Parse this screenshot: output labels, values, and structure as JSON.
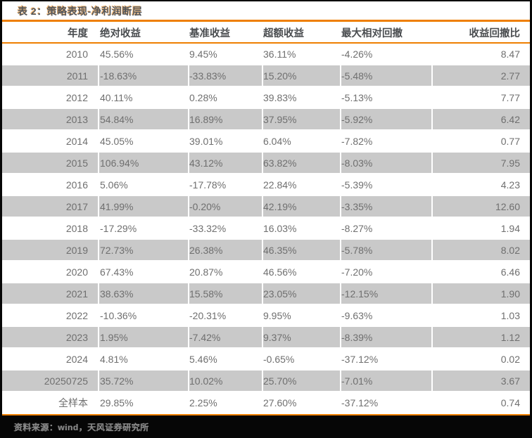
{
  "title": "表 2：策略表现-净利润断层",
  "table": {
    "columns": [
      "年度",
      "绝对收益",
      "基准收益",
      "超额收益",
      "最大相对回撤",
      "收益回撤比"
    ],
    "rows": [
      [
        "2010",
        "45.56%",
        "9.45%",
        "36.11%",
        "-4.26%",
        "8.47"
      ],
      [
        "2011",
        "-18.63%",
        "-33.83%",
        "15.20%",
        "-5.48%",
        "2.77"
      ],
      [
        "2012",
        "40.11%",
        "0.28%",
        "39.83%",
        "-5.13%",
        "7.77"
      ],
      [
        "2013",
        "54.84%",
        "16.89%",
        "37.95%",
        "-5.92%",
        "6.42"
      ],
      [
        "2014",
        "45.05%",
        "39.01%",
        "6.04%",
        "-7.82%",
        "0.77"
      ],
      [
        "2015",
        "106.94%",
        "43.12%",
        "63.82%",
        "-8.03%",
        "7.95"
      ],
      [
        "2016",
        "5.06%",
        "-17.78%",
        "22.84%",
        "-5.39%",
        "4.23"
      ],
      [
        "2017",
        "41.99%",
        "-0.20%",
        "42.19%",
        "-3.35%",
        "12.60"
      ],
      [
        "2018",
        "-17.29%",
        "-33.32%",
        "16.03%",
        "-8.27%",
        "1.94"
      ],
      [
        "2019",
        "72.73%",
        "26.38%",
        "46.35%",
        "-5.78%",
        "8.02"
      ],
      [
        "2020",
        "67.43%",
        "20.87%",
        "46.56%",
        "-7.20%",
        "6.46"
      ],
      [
        "2021",
        "38.63%",
        "15.58%",
        "23.05%",
        "-12.15%",
        "1.90"
      ],
      [
        "2022",
        "-10.36%",
        "-20.31%",
        "9.95%",
        "-9.63%",
        "1.03"
      ],
      [
        "2023",
        "1.95%",
        "-7.42%",
        "9.37%",
        "-8.39%",
        "1.12"
      ],
      [
        "2024",
        "4.81%",
        "5.46%",
        "-0.65%",
        "-37.12%",
        "0.02"
      ],
      [
        "20250725",
        "35.72%",
        "10.02%",
        "25.70%",
        "-7.01%",
        "3.67"
      ],
      [
        "全样本",
        "29.85%",
        "2.25%",
        "27.60%",
        "-37.12%",
        "0.74"
      ]
    ]
  },
  "footer": {
    "source": "资料来源：wind，天风证券研究所"
  },
  "colors": {
    "accent_orange": "#ee7f01",
    "stripe_gray": "#c9c9c9",
    "title_text": "#53565a",
    "data_text": "#6f6f6f",
    "page_background": "#060606"
  }
}
